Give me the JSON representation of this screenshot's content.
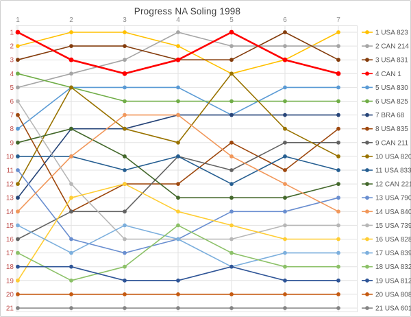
{
  "title": "Progress NA Soling 1998",
  "chart_data": {
    "type": "line",
    "title": "Progress NA Soling 1998",
    "x": [
      1,
      2,
      3,
      4,
      5,
      6,
      7
    ],
    "x_axis": {
      "position": "top",
      "tick_labels": [
        "1",
        "2",
        "3",
        "4",
        "5",
        "6",
        "7"
      ]
    },
    "y_axis": {
      "min": 1,
      "max": 21,
      "inverted": true,
      "tick_labels": [
        "1",
        "2",
        "3",
        "4",
        "5",
        "6",
        "7",
        "8",
        "9",
        "10",
        "11",
        "12",
        "13",
        "14",
        "15",
        "16",
        "17",
        "18",
        "19",
        "20",
        "21"
      ]
    },
    "xlabel": "",
    "ylabel": "",
    "grid": true,
    "grid_color": "#e2e2e2",
    "axis_label_colors": {
      "x": "#8c8c8c",
      "y": "#c0504d"
    },
    "legend_position": "right",
    "series": [
      {
        "label": "1 USA 823",
        "color": "#FFC000",
        "emphasis": false,
        "positions": [
          2,
          1,
          1,
          2,
          4,
          3,
          1
        ]
      },
      {
        "label": "2 CAN 214",
        "color": "#A5A5A5",
        "emphasis": false,
        "positions": [
          5,
          4,
          3,
          1,
          2,
          2,
          2
        ]
      },
      {
        "label": "3 USA 831",
        "color": "#843C0C",
        "emphasis": false,
        "positions": [
          3,
          2,
          2,
          3,
          3,
          1,
          3
        ]
      },
      {
        "label": "4 CAN 1",
        "color": "#FF0000",
        "emphasis": true,
        "positions": [
          1,
          3,
          4,
          3,
          1,
          3,
          4
        ]
      },
      {
        "label": "5 USA 830",
        "color": "#5B9BD5",
        "emphasis": false,
        "positions": [
          8,
          5,
          5,
          5,
          7,
          5,
          5
        ]
      },
      {
        "label": "6 USA 825",
        "color": "#70AD47",
        "emphasis": false,
        "positions": [
          4,
          5,
          6,
          6,
          6,
          6,
          6
        ]
      },
      {
        "label": "7 BRA 68",
        "color": "#264478",
        "emphasis": false,
        "positions": [
          13,
          8,
          8,
          7,
          7,
          7,
          7
        ]
      },
      {
        "label": "8 USA 835",
        "color": "#9E480E",
        "emphasis": false,
        "positions": [
          7,
          14,
          12,
          12,
          9,
          11,
          8
        ]
      },
      {
        "label": "9 CAN 211",
        "color": "#636363",
        "emphasis": false,
        "positions": [
          16,
          14,
          14,
          10,
          11,
          9,
          9
        ]
      },
      {
        "label": "10 USA 820",
        "color": "#997300",
        "emphasis": false,
        "positions": [
          12,
          5,
          8,
          9,
          4,
          8,
          10
        ]
      },
      {
        "label": "11 USA 833",
        "color": "#255E91",
        "emphasis": false,
        "positions": [
          10,
          10,
          11,
          10,
          12,
          10,
          11
        ]
      },
      {
        "label": "12 CAN 221",
        "color": "#43682B",
        "emphasis": false,
        "positions": [
          9,
          8,
          10,
          13,
          13,
          13,
          12
        ]
      },
      {
        "label": "13 USA 790",
        "color": "#698ED0",
        "emphasis": false,
        "positions": [
          11,
          16,
          17,
          16,
          14,
          14,
          13
        ]
      },
      {
        "label": "14 USA 840",
        "color": "#F1975A",
        "emphasis": false,
        "positions": [
          14,
          10,
          7,
          7,
          10,
          12,
          14
        ]
      },
      {
        "label": "15 USA 739",
        "color": "#B7B7B7",
        "emphasis": false,
        "positions": [
          6,
          12,
          16,
          16,
          16,
          15,
          15
        ]
      },
      {
        "label": "16 USA 828",
        "color": "#FFCD33",
        "emphasis": false,
        "positions": [
          19,
          13,
          12,
          14,
          15,
          16,
          16
        ]
      },
      {
        "label": "17 USA 839",
        "color": "#7CAFDD",
        "emphasis": false,
        "positions": [
          15,
          17,
          15,
          16,
          18,
          17,
          17
        ]
      },
      {
        "label": "18 USA 832",
        "color": "#8CC168",
        "emphasis": false,
        "positions": [
          17,
          19,
          18,
          15,
          17,
          18,
          18
        ]
      },
      {
        "label": "19 USA 812",
        "color": "#2F5597",
        "emphasis": false,
        "positions": [
          18,
          18,
          19,
          19,
          18,
          19,
          19
        ]
      },
      {
        "label": "20 USA 808",
        "color": "#C55A11",
        "emphasis": false,
        "positions": [
          20,
          20,
          20,
          20,
          20,
          20,
          20
        ]
      },
      {
        "label": "21 USA 601",
        "color": "#848484",
        "emphasis": false,
        "positions": [
          21,
          21,
          21,
          21,
          21,
          21,
          21
        ]
      }
    ]
  }
}
